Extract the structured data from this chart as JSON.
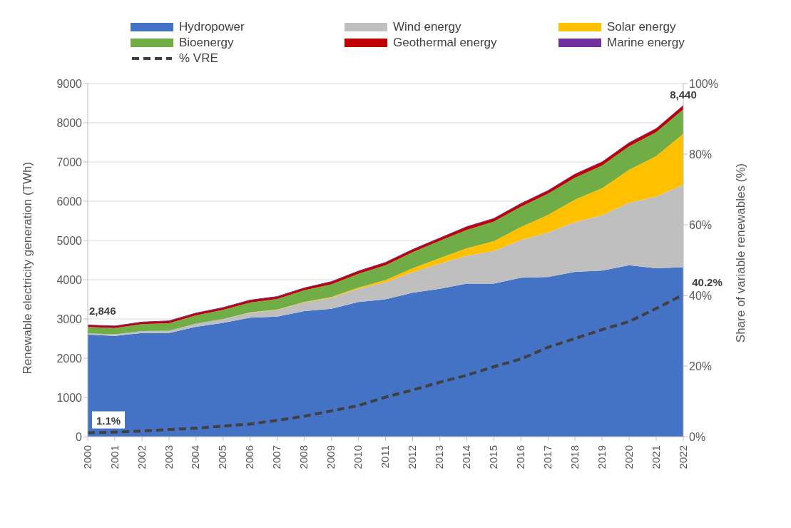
{
  "chart_data": {
    "type": "area",
    "stacked": true,
    "categories": [
      "2000",
      "2001",
      "2002",
      "2003",
      "2004",
      "2005",
      "2006",
      "2007",
      "2008",
      "2009",
      "2010",
      "2011",
      "2012",
      "2013",
      "2014",
      "2015",
      "2016",
      "2017",
      "2018",
      "2019",
      "2020",
      "2021",
      "2022"
    ],
    "ylabel": "Renewable electricity generation (TWh)",
    "y2label": "Share of variable renewables (%)",
    "ylim": [
      0,
      9000
    ],
    "yticks": [
      0,
      1000,
      2000,
      3000,
      4000,
      5000,
      6000,
      7000,
      8000,
      9000
    ],
    "y2lim": [
      0,
      100
    ],
    "y2ticks": [
      {
        "value": 0,
        "label": "0%"
      },
      {
        "value": 20,
        "label": "20%"
      },
      {
        "value": 40,
        "label": "40%"
      },
      {
        "value": 60,
        "label": "60%"
      },
      {
        "value": 80,
        "label": "80%"
      },
      {
        "value": 100,
        "label": "100%"
      }
    ],
    "grid": "y",
    "legend": "top",
    "totals": [
      "2,846",
      null,
      null,
      null,
      null,
      null,
      null,
      null,
      null,
      null,
      null,
      null,
      null,
      null,
      null,
      null,
      null,
      null,
      null,
      null,
      null,
      null,
      "8,440"
    ],
    "series": [
      {
        "name": "Hydropower",
        "color": "#4472c4",
        "values": [
          2600,
          2570,
          2640,
          2640,
          2800,
          2900,
          3030,
          3060,
          3200,
          3260,
          3430,
          3500,
          3670,
          3770,
          3900,
          3900,
          4050,
          4070,
          4200,
          4230,
          4370,
          4290,
          4320
        ]
      },
      {
        "name": "Wind energy",
        "color": "#bfbfbf",
        "values": [
          30,
          40,
          50,
          60,
          80,
          100,
          130,
          170,
          220,
          280,
          340,
          430,
          520,
          640,
          710,
          830,
          960,
          1130,
          1270,
          1410,
          1590,
          1830,
          2100
        ]
      },
      {
        "name": "Solar energy",
        "color": "#ffc000",
        "values": [
          0,
          0,
          0,
          0,
          0,
          0,
          10,
          10,
          10,
          20,
          30,
          60,
          100,
          140,
          190,
          250,
          330,
          450,
          570,
          690,
          840,
          1030,
          1300
        ]
      },
      {
        "name": "Bioenergy",
        "color": "#70ad47",
        "values": [
          165,
          160,
          180,
          190,
          210,
          230,
          250,
          270,
          300,
          320,
          350,
          380,
          410,
          440,
          470,
          500,
          520,
          540,
          560,
          580,
          600,
          610,
          619
        ]
      },
      {
        "name": "Geothermal energy",
        "color": "#c00000",
        "values": [
          50,
          50,
          50,
          60,
          60,
          60,
          60,
          60,
          60,
          70,
          70,
          70,
          70,
          70,
          80,
          80,
          80,
          80,
          90,
          90,
          90,
          90,
          100
        ]
      },
      {
        "name": "Marine energy",
        "color": "#7030a0",
        "values": [
          1,
          1,
          1,
          1,
          1,
          1,
          1,
          1,
          1,
          1,
          1,
          1,
          1,
          1,
          1,
          1,
          1,
          1,
          1,
          1,
          1,
          1,
          1
        ]
      },
      {
        "name": "% VRE",
        "type": "line",
        "axis": "y2",
        "color": "#404040",
        "line_style": "dashed",
        "marker": "none",
        "values": [
          1.1,
          1.3,
          1.6,
          2.0,
          2.4,
          3.0,
          3.6,
          4.6,
          5.8,
          7.3,
          8.8,
          11.2,
          13.2,
          15.4,
          17.4,
          19.8,
          22.0,
          25.3,
          27.8,
          30.3,
          32.6,
          36.3,
          40.2
        ],
        "value_labels": [
          "1.1%",
          null,
          null,
          null,
          null,
          null,
          null,
          null,
          null,
          null,
          null,
          null,
          null,
          null,
          null,
          null,
          null,
          null,
          null,
          null,
          null,
          null,
          "40.2%"
        ]
      }
    ]
  }
}
